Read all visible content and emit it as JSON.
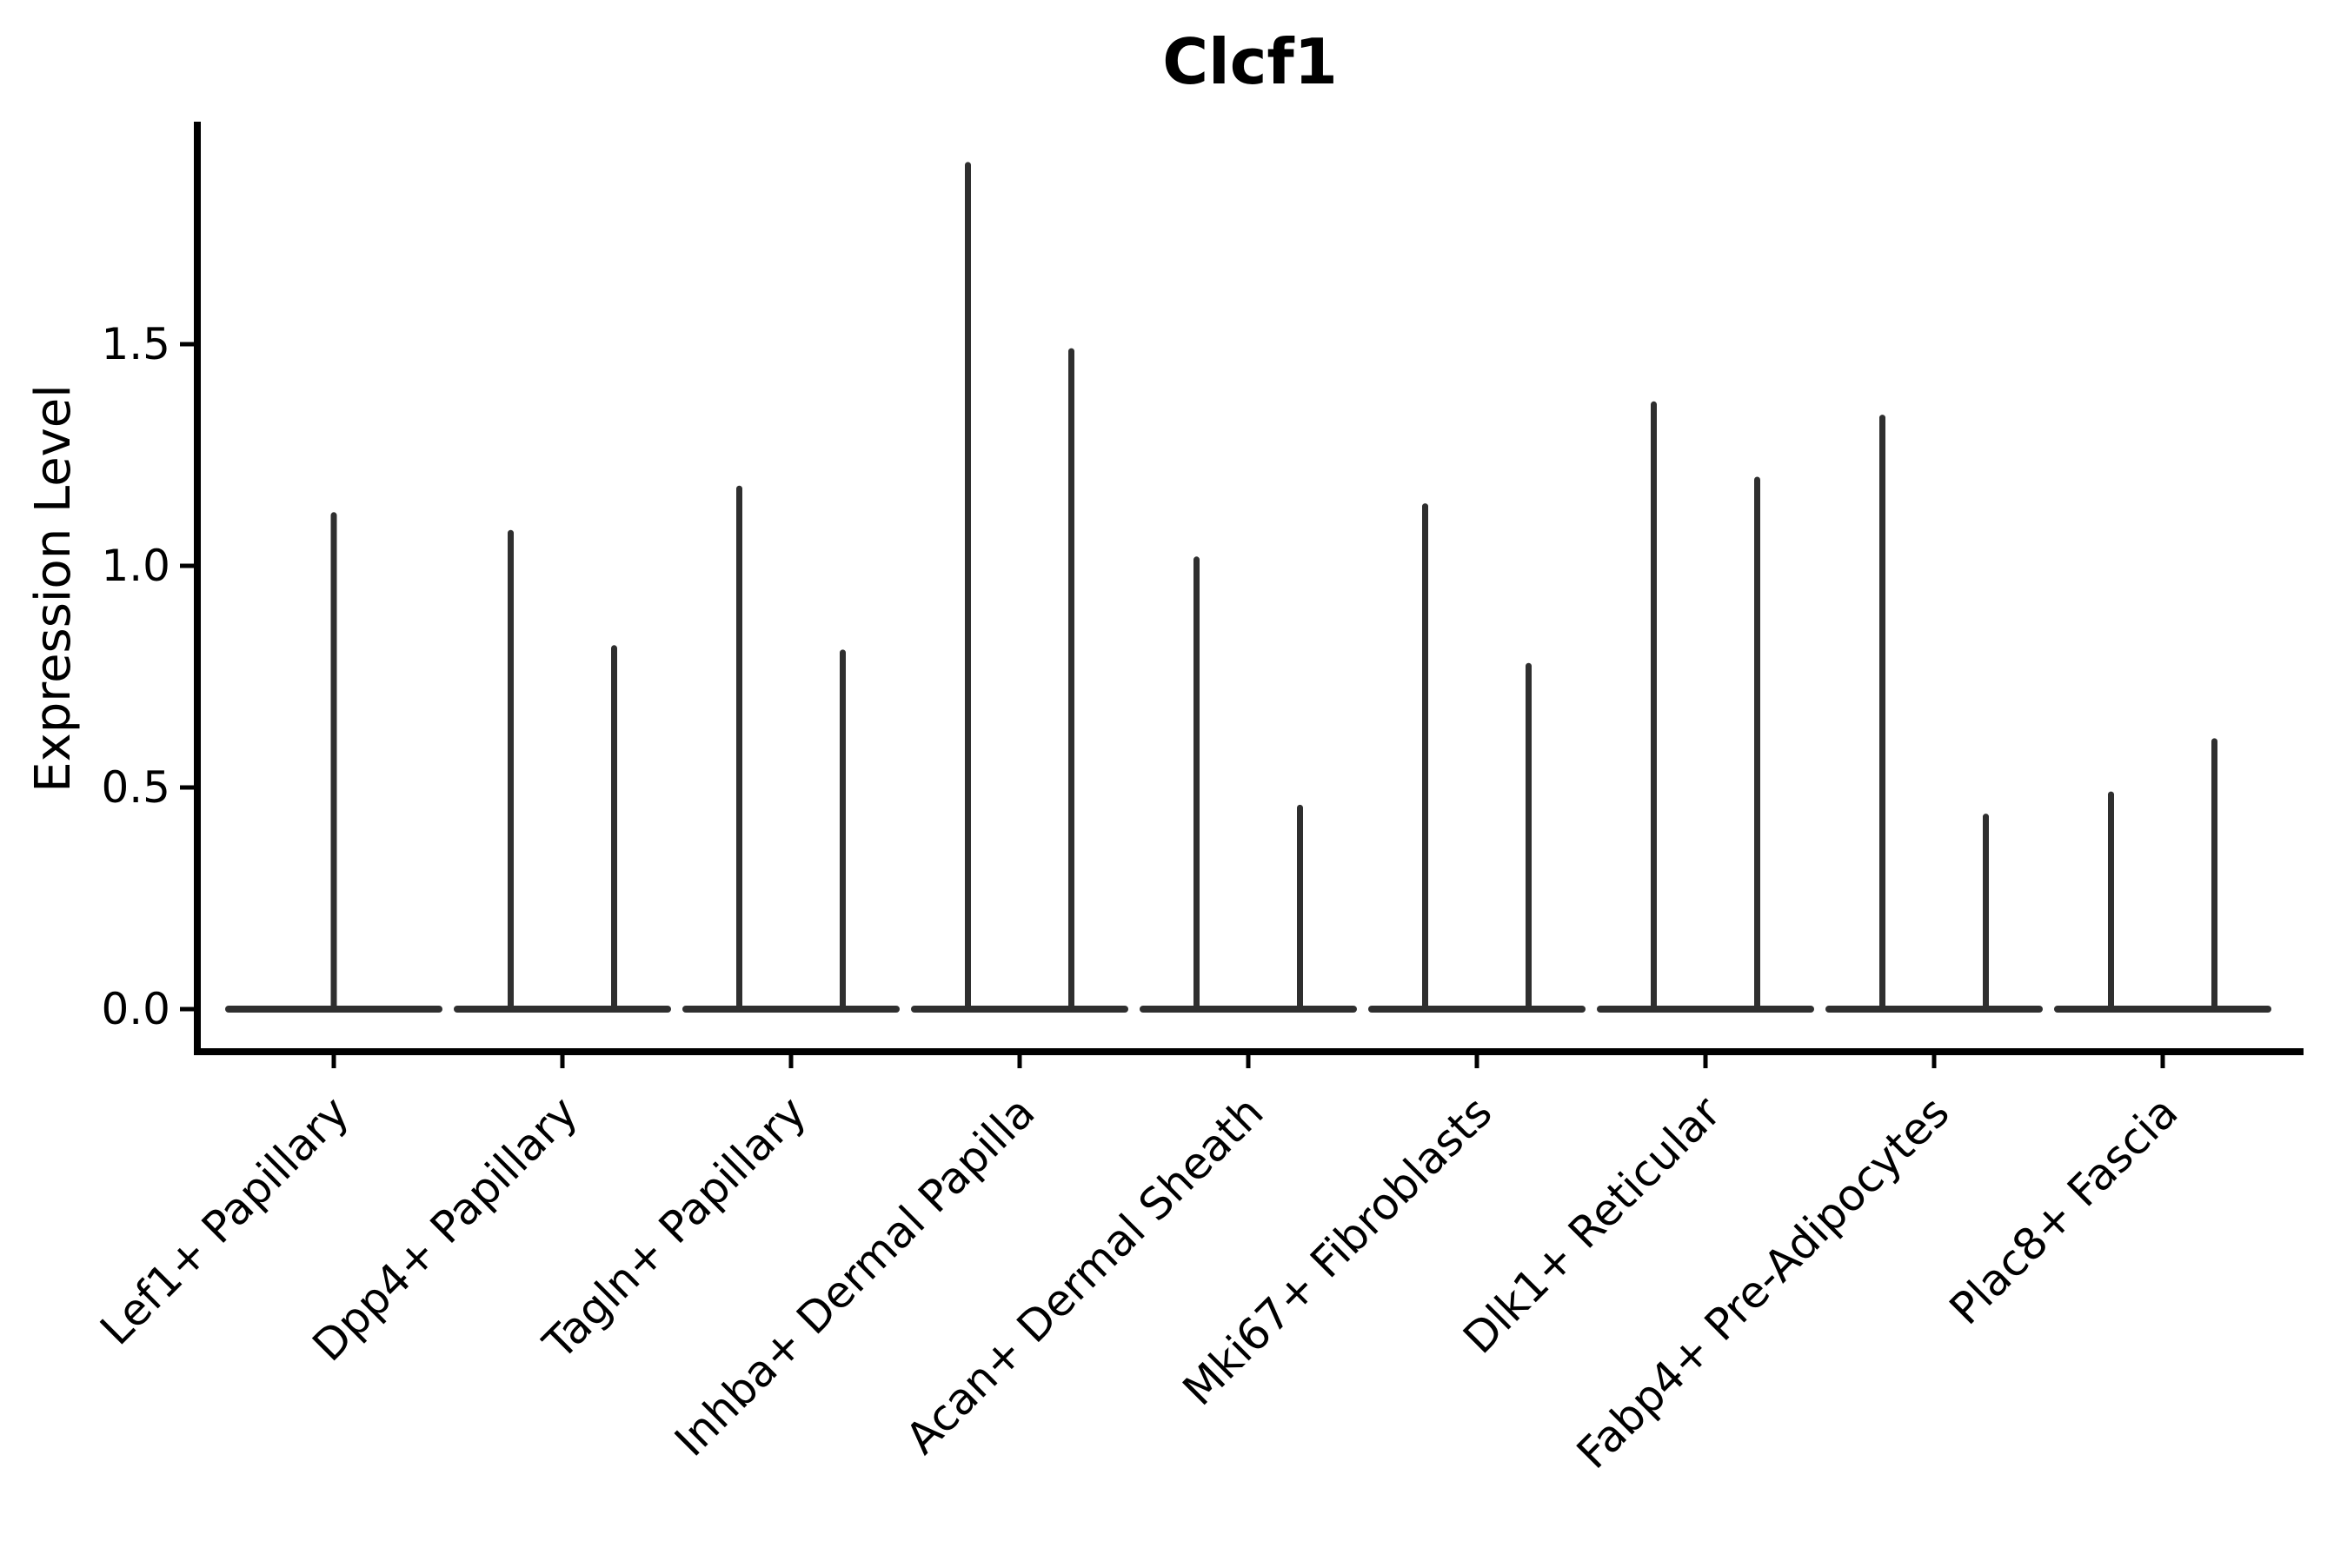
{
  "figure": {
    "title": "Clcf1",
    "y_axis_label": "Expression Level"
  },
  "chart_data": {
    "type": "violin",
    "title": "Clcf1",
    "xlabel": "",
    "ylabel": "Expression Level",
    "ylim": [
      -0.1,
      2.0
    ],
    "yticks": [
      "0.0",
      "0.5",
      "1.0",
      "1.5"
    ],
    "ytick_values": [
      0.0,
      0.5,
      1.0,
      1.5
    ],
    "grid": false,
    "legend": null,
    "categories": [
      "Lef1+ Papillary",
      "Dpp4+ Papillary",
      "Tagln+ Papillary",
      "Inhba+ Dermal Papilla",
      "Acan+ Dermal Sheath",
      "Mki67+ Fibroblasts",
      "Dlk1+ Reticular",
      "Fabp4+ Pre-Adipocytes",
      "Plac8+ Fascia"
    ],
    "series": [
      {
        "category": "Lef1+ Papillary",
        "violin_peaks": [
          1.12
        ]
      },
      {
        "category": "Dpp4+ Papillary",
        "violin_peaks": [
          1.08,
          0.82
        ]
      },
      {
        "category": "Tagln+ Papillary",
        "violin_peaks": [
          1.18,
          0.81
        ]
      },
      {
        "category": "Inhba+ Dermal Papilla",
        "violin_peaks": [
          1.91,
          1.49
        ]
      },
      {
        "category": "Acan+ Dermal Sheath",
        "violin_peaks": [
          1.02,
          0.46
        ]
      },
      {
        "category": "Mki67+ Fibroblasts",
        "violin_peaks": [
          1.14,
          0.78
        ]
      },
      {
        "category": "Dlk1+ Reticular",
        "violin_peaks": [
          1.37,
          1.2
        ]
      },
      {
        "category": "Fabp4+ Pre-Adipocytes",
        "violin_peaks": [
          1.34,
          0.44
        ]
      },
      {
        "category": "Plac8+ Fascia",
        "violin_peaks": [
          0.49,
          0.61
        ]
      }
    ],
    "colors": {
      "violin": "#2f2f2f",
      "axis": "#000000",
      "text": "#000000",
      "background": "#ffffff"
    },
    "notes": "Violins collapse to a flat base at 0 expression with a narrow central peak up to the max value; single-group categories show one centered peak, two-group categories show two peaks."
  }
}
